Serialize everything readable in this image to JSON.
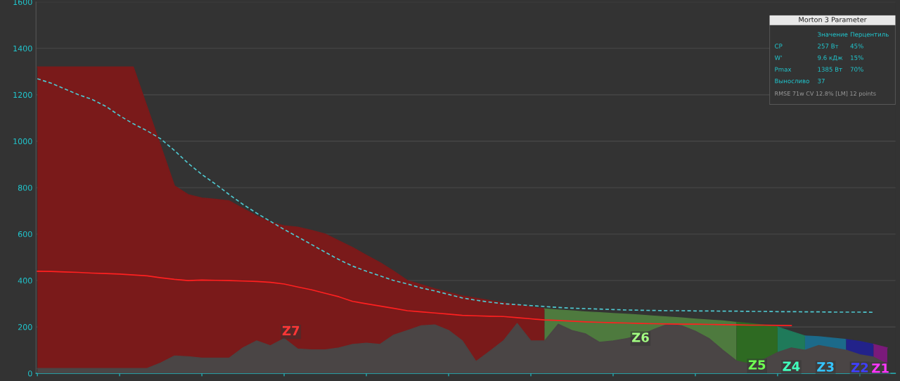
{
  "chart_data": {
    "type": "area",
    "categories": [
      null,
      null,
      null,
      null,
      null,
      null,
      null,
      null,
      null,
      null,
      null,
      null,
      null,
      null,
      null,
      null,
      null,
      null,
      null,
      null,
      null,
      null,
      null,
      null,
      null,
      null,
      null,
      null,
      null,
      null,
      null,
      null,
      null,
      null,
      null,
      null,
      null,
      null,
      null,
      null,
      null,
      null,
      null,
      null,
      null,
      null,
      null,
      null,
      null,
      null,
      null,
      null,
      null,
      null,
      null,
      null,
      null,
      null,
      null,
      null,
      null,
      null,
      null
    ],
    "ylim": [
      0,
      1600
    ],
    "yticks": [
      0,
      200,
      400,
      600,
      800,
      1000,
      1200,
      1400,
      1600
    ],
    "grid": "y",
    "tick_labels": "y",
    "marker": "none",
    "series": [
      {
        "name": "Z7",
        "color": "#7a1a1a",
        "values": [
          1320,
          1320,
          1320,
          1320,
          1320,
          1320,
          1320,
          1320,
          1149,
          979,
          808,
          770,
          755,
          750,
          743,
          710,
          678,
          652,
          636,
          630,
          616,
          600,
          571,
          542,
          509,
          477,
          440,
          400,
          382,
          364,
          349,
          334,
          324,
          314,
          304,
          295,
          286,
          278,
          null,
          null,
          null,
          null,
          null,
          null,
          null,
          null,
          null,
          null,
          null,
          null,
          null,
          null,
          null,
          null,
          null,
          null,
          null,
          null,
          null,
          null,
          null,
          null,
          null
        ]
      },
      {
        "name": "Z6",
        "color": "#4e7a3e",
        "values": [
          null,
          null,
          null,
          null,
          null,
          null,
          null,
          null,
          null,
          null,
          null,
          null,
          null,
          null,
          null,
          null,
          null,
          null,
          null,
          null,
          null,
          null,
          null,
          null,
          null,
          null,
          null,
          null,
          null,
          null,
          null,
          null,
          null,
          null,
          null,
          null,
          null,
          278,
          273,
          269,
          265,
          262,
          258,
          255,
          251,
          247,
          243,
          239,
          234,
          230,
          226,
          220,
          null,
          null,
          null,
          null,
          null,
          null,
          null,
          null,
          null,
          null,
          null
        ]
      },
      {
        "name": "Z5",
        "color": "#2e6a22",
        "values": [
          null,
          null,
          null,
          null,
          null,
          null,
          null,
          null,
          null,
          null,
          null,
          null,
          null,
          null,
          null,
          null,
          null,
          null,
          null,
          null,
          null,
          null,
          null,
          null,
          null,
          null,
          null,
          null,
          null,
          null,
          null,
          null,
          null,
          null,
          null,
          null,
          null,
          null,
          null,
          null,
          null,
          null,
          null,
          null,
          null,
          null,
          null,
          null,
          null,
          null,
          null,
          220,
          215,
          208,
          200,
          null,
          null,
          null,
          null,
          null,
          null,
          null,
          null
        ]
      },
      {
        "name": "Z4",
        "color": "#1f7a5a",
        "values": [
          null,
          null,
          null,
          null,
          null,
          null,
          null,
          null,
          null,
          null,
          null,
          null,
          null,
          null,
          null,
          null,
          null,
          null,
          null,
          null,
          null,
          null,
          null,
          null,
          null,
          null,
          null,
          null,
          null,
          null,
          null,
          null,
          null,
          null,
          null,
          null,
          null,
          null,
          null,
          null,
          null,
          null,
          null,
          null,
          null,
          null,
          null,
          null,
          null,
          null,
          null,
          null,
          null,
          null,
          200,
          180,
          161,
          null,
          null,
          null,
          null,
          null,
          null
        ]
      },
      {
        "name": "Z3",
        "color": "#1c6a8a",
        "values": [
          null,
          null,
          null,
          null,
          null,
          null,
          null,
          null,
          null,
          null,
          null,
          null,
          null,
          null,
          null,
          null,
          null,
          null,
          null,
          null,
          null,
          null,
          null,
          null,
          null,
          null,
          null,
          null,
          null,
          null,
          null,
          null,
          null,
          null,
          null,
          null,
          null,
          null,
          null,
          null,
          null,
          null,
          null,
          null,
          null,
          null,
          null,
          null,
          null,
          null,
          null,
          null,
          null,
          null,
          null,
          null,
          161,
          158,
          152,
          146,
          null,
          null,
          null
        ]
      },
      {
        "name": "Z2",
        "color": "#22228a",
        "values": [
          null,
          null,
          null,
          null,
          null,
          null,
          null,
          null,
          null,
          null,
          null,
          null,
          null,
          null,
          null,
          null,
          null,
          null,
          null,
          null,
          null,
          null,
          null,
          null,
          null,
          null,
          null,
          null,
          null,
          null,
          null,
          null,
          null,
          null,
          null,
          null,
          null,
          null,
          null,
          null,
          null,
          null,
          null,
          null,
          null,
          null,
          null,
          null,
          null,
          null,
          null,
          null,
          null,
          null,
          null,
          null,
          null,
          null,
          null,
          146,
          138,
          125,
          null
        ]
      },
      {
        "name": "Z1",
        "color": "#7a1a7a",
        "values": [
          null,
          null,
          null,
          null,
          null,
          null,
          null,
          null,
          null,
          null,
          null,
          null,
          null,
          null,
          null,
          null,
          null,
          null,
          null,
          null,
          null,
          null,
          null,
          null,
          null,
          null,
          null,
          null,
          null,
          null,
          null,
          null,
          null,
          null,
          null,
          null,
          null,
          null,
          null,
          null,
          null,
          null,
          null,
          null,
          null,
          null,
          null,
          null,
          null,
          null,
          null,
          null,
          null,
          null,
          null,
          null,
          null,
          null,
          null,
          null,
          null,
          125,
          110
        ]
      },
      {
        "type": "area",
        "color": "#4a4545",
        "values": [
          21,
          21,
          21,
          21,
          21,
          21,
          21,
          21,
          21,
          45,
          75,
          72,
          66,
          66,
          66,
          110,
          140,
          119,
          150,
          105,
          101,
          101,
          110,
          125,
          130,
          125,
          165,
          185,
          205,
          209,
          185,
          140,
          51,
          95,
          140,
          215,
          140,
          140,
          212,
          185,
          170,
          134,
          140,
          150,
          164,
          190,
          212,
          205,
          182,
          150,
          100,
          54,
          40,
          60,
          90,
          110,
          100,
          120,
          110,
          100,
          80,
          70,
          40
        ]
      },
      {
        "type": "line",
        "color": "#ff2020",
        "line_style": "solid",
        "values": [
          440,
          439,
          437,
          435,
          432,
          430,
          428,
          424,
          420,
          412,
          405,
          400,
          402,
          401,
          400,
          398,
          396,
          392,
          385,
          372,
          360,
          345,
          330,
          310,
          300,
          290,
          280,
          270,
          265,
          260,
          255,
          250,
          248,
          246,
          245,
          240,
          235,
          230,
          228,
          225,
          222,
          220,
          218,
          217,
          215,
          214,
          213,
          212,
          212,
          211,
          210,
          209,
          208,
          208,
          207,
          206,
          null,
          null,
          null,
          null,
          null,
          null,
          null
        ]
      },
      {
        "type": "line",
        "color": "#4fc8d0",
        "line_style": "dashed",
        "values": [
          1269,
          1250,
          1225,
          1200,
          1180,
          1150,
          1110,
          1075,
          1045,
          1010,
          960,
          905,
          857,
          815,
          770,
          728,
          690,
          655,
          620,
          588,
          555,
          522,
          490,
          462,
          440,
          420,
          400,
          385,
          368,
          355,
          340,
          325,
          315,
          307,
          300,
          296,
          292,
          288,
          284,
          281,
          279,
          277,
          275,
          273,
          272,
          271,
          270,
          270,
          269,
          269,
          268,
          268,
          267,
          267,
          266,
          266,
          265,
          265,
          264,
          264,
          264,
          263,
          null
        ]
      }
    ],
    "annotations": [
      "Morton 3 Parameter",
      "Значение",
      "Перцентиль",
      "CP",
      "257 Вт",
      "45%",
      "W'",
      "9.6 кДж",
      "15%",
      "Pmax",
      "1385 Вт",
      "70%",
      "Выносливо",
      "37",
      "RMSE 71w CV 12.8% [LM] 12 points"
    ]
  }
}
